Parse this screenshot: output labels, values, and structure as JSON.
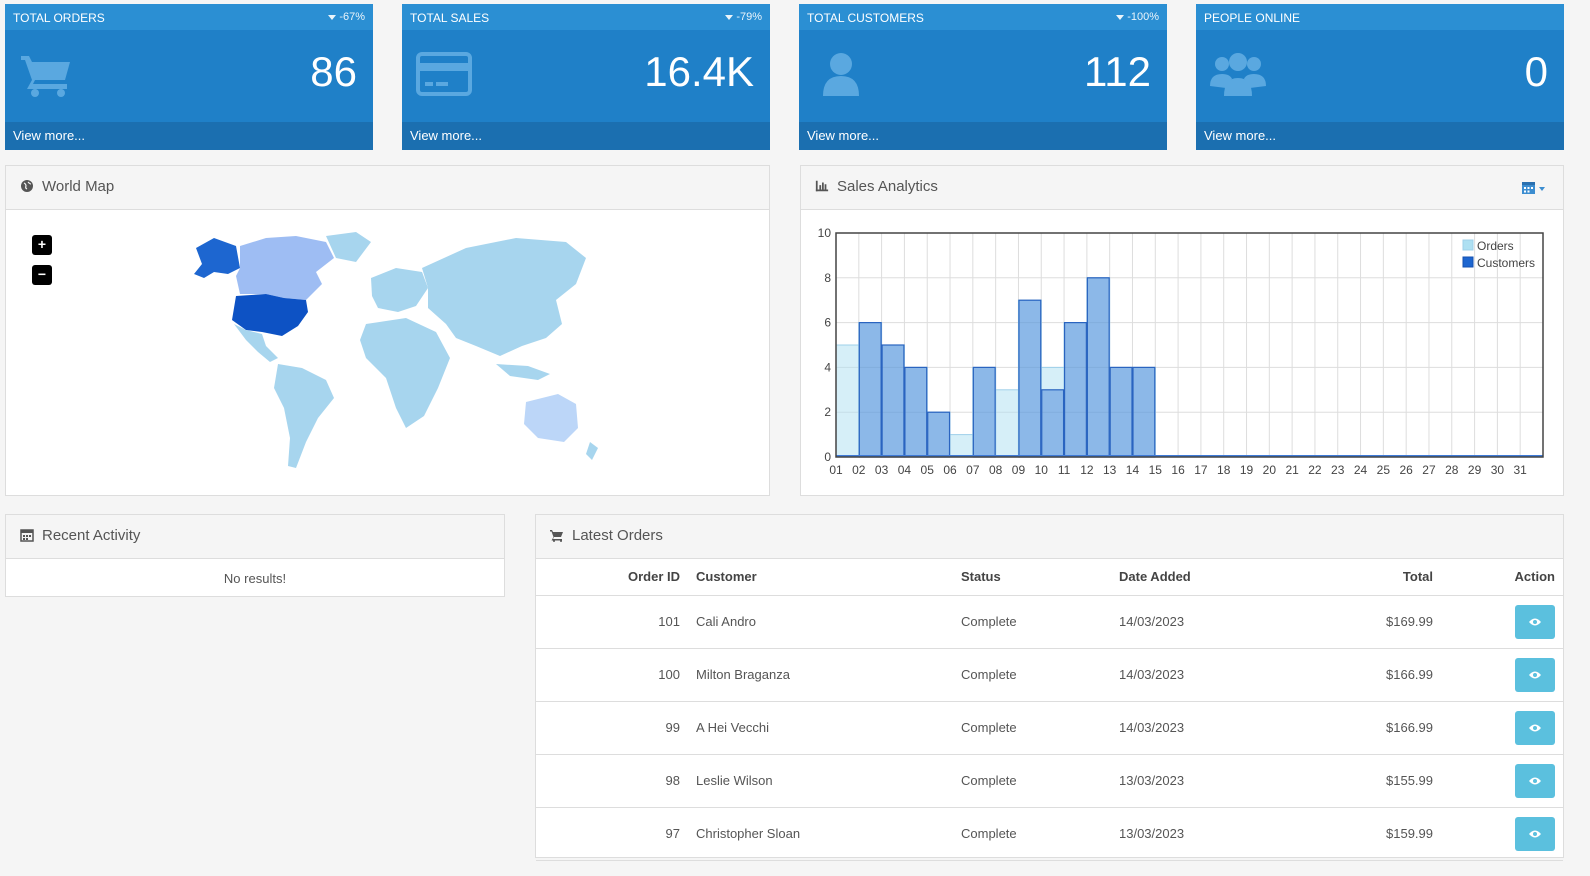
{
  "tiles": [
    {
      "title": "TOTAL ORDERS",
      "change": "-67%",
      "value": "86",
      "footer": "View more..."
    },
    {
      "title": "TOTAL SALES",
      "change": "-79%",
      "value": "16.4K",
      "footer": "View more..."
    },
    {
      "title": "TOTAL CUSTOMERS",
      "change": "-100%",
      "value": "112",
      "footer": "View more..."
    },
    {
      "title": "PEOPLE ONLINE",
      "change": "",
      "value": "0",
      "footer": "View more..."
    }
  ],
  "world_map": {
    "title": "World Map",
    "zoom_in": "+",
    "zoom_out": "−"
  },
  "sales_analytics": {
    "title": "Sales Analytics"
  },
  "chart_data": {
    "type": "bar",
    "categories": [
      "01",
      "02",
      "03",
      "04",
      "05",
      "06",
      "07",
      "08",
      "09",
      "10",
      "11",
      "12",
      "13",
      "14",
      "15",
      "16",
      "17",
      "18",
      "19",
      "20",
      "21",
      "22",
      "23",
      "24",
      "25",
      "26",
      "27",
      "28",
      "29",
      "30",
      "31"
    ],
    "series": [
      {
        "name": "Orders",
        "values": [
          5,
          6,
          5,
          4,
          2,
          1,
          4,
          3,
          7,
          4,
          6,
          8,
          4,
          4,
          0,
          0,
          0,
          0,
          0,
          0,
          0,
          0,
          0,
          0,
          0,
          0,
          0,
          0,
          0,
          0,
          0
        ]
      },
      {
        "name": "Customers",
        "values": [
          0,
          6,
          5,
          4,
          2,
          0,
          4,
          0,
          7,
          3,
          6,
          8,
          4,
          4,
          0,
          0,
          0,
          0,
          0,
          0,
          0,
          0,
          0,
          0,
          0,
          0,
          0,
          0,
          0,
          0,
          0
        ]
      }
    ],
    "yticks": [
      "0",
      "2",
      "4",
      "6",
      "8",
      "10"
    ],
    "ylim": [
      0,
      10
    ],
    "grid": true,
    "legend": "top-right",
    "colors": {
      "Orders": "#aee0f2",
      "Customers": "#1d66d0"
    }
  },
  "recent_activity": {
    "title": "Recent Activity",
    "empty": "No results!"
  },
  "latest_orders": {
    "title": "Latest Orders",
    "headers": {
      "id": "Order ID",
      "customer": "Customer",
      "status": "Status",
      "date": "Date Added",
      "total": "Total",
      "action": "Action"
    },
    "rows": [
      {
        "id": "101",
        "customer": "Cali Andro",
        "status": "Complete",
        "date": "14/03/2023",
        "total": "$169.99"
      },
      {
        "id": "100",
        "customer": "Milton Braganza",
        "status": "Complete",
        "date": "14/03/2023",
        "total": "$166.99"
      },
      {
        "id": "99",
        "customer": "A Hei Vecchi",
        "status": "Complete",
        "date": "14/03/2023",
        "total": "$166.99"
      },
      {
        "id": "98",
        "customer": "Leslie Wilson",
        "status": "Complete",
        "date": "13/03/2023",
        "total": "$155.99"
      },
      {
        "id": "97",
        "customer": "Christopher Sloan",
        "status": "Complete",
        "date": "13/03/2023",
        "total": "$159.99"
      }
    ]
  }
}
